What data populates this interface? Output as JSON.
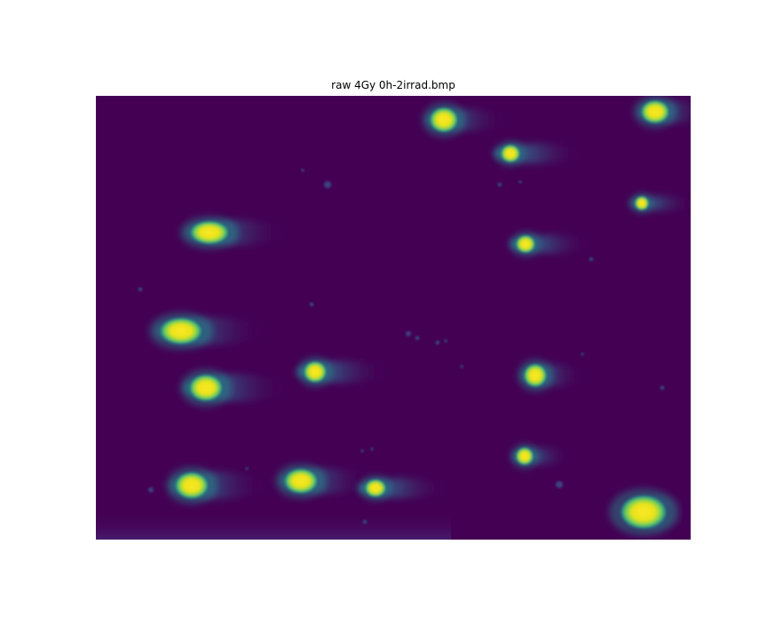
{
  "figure": {
    "title": "raw 4Gy 0h-2irrad.bmp",
    "colormap": {
      "background": "#440154",
      "low": "#3b528b",
      "mid": "#21918c",
      "high": "#5ec962",
      "peak": "#fde725"
    }
  }
}
